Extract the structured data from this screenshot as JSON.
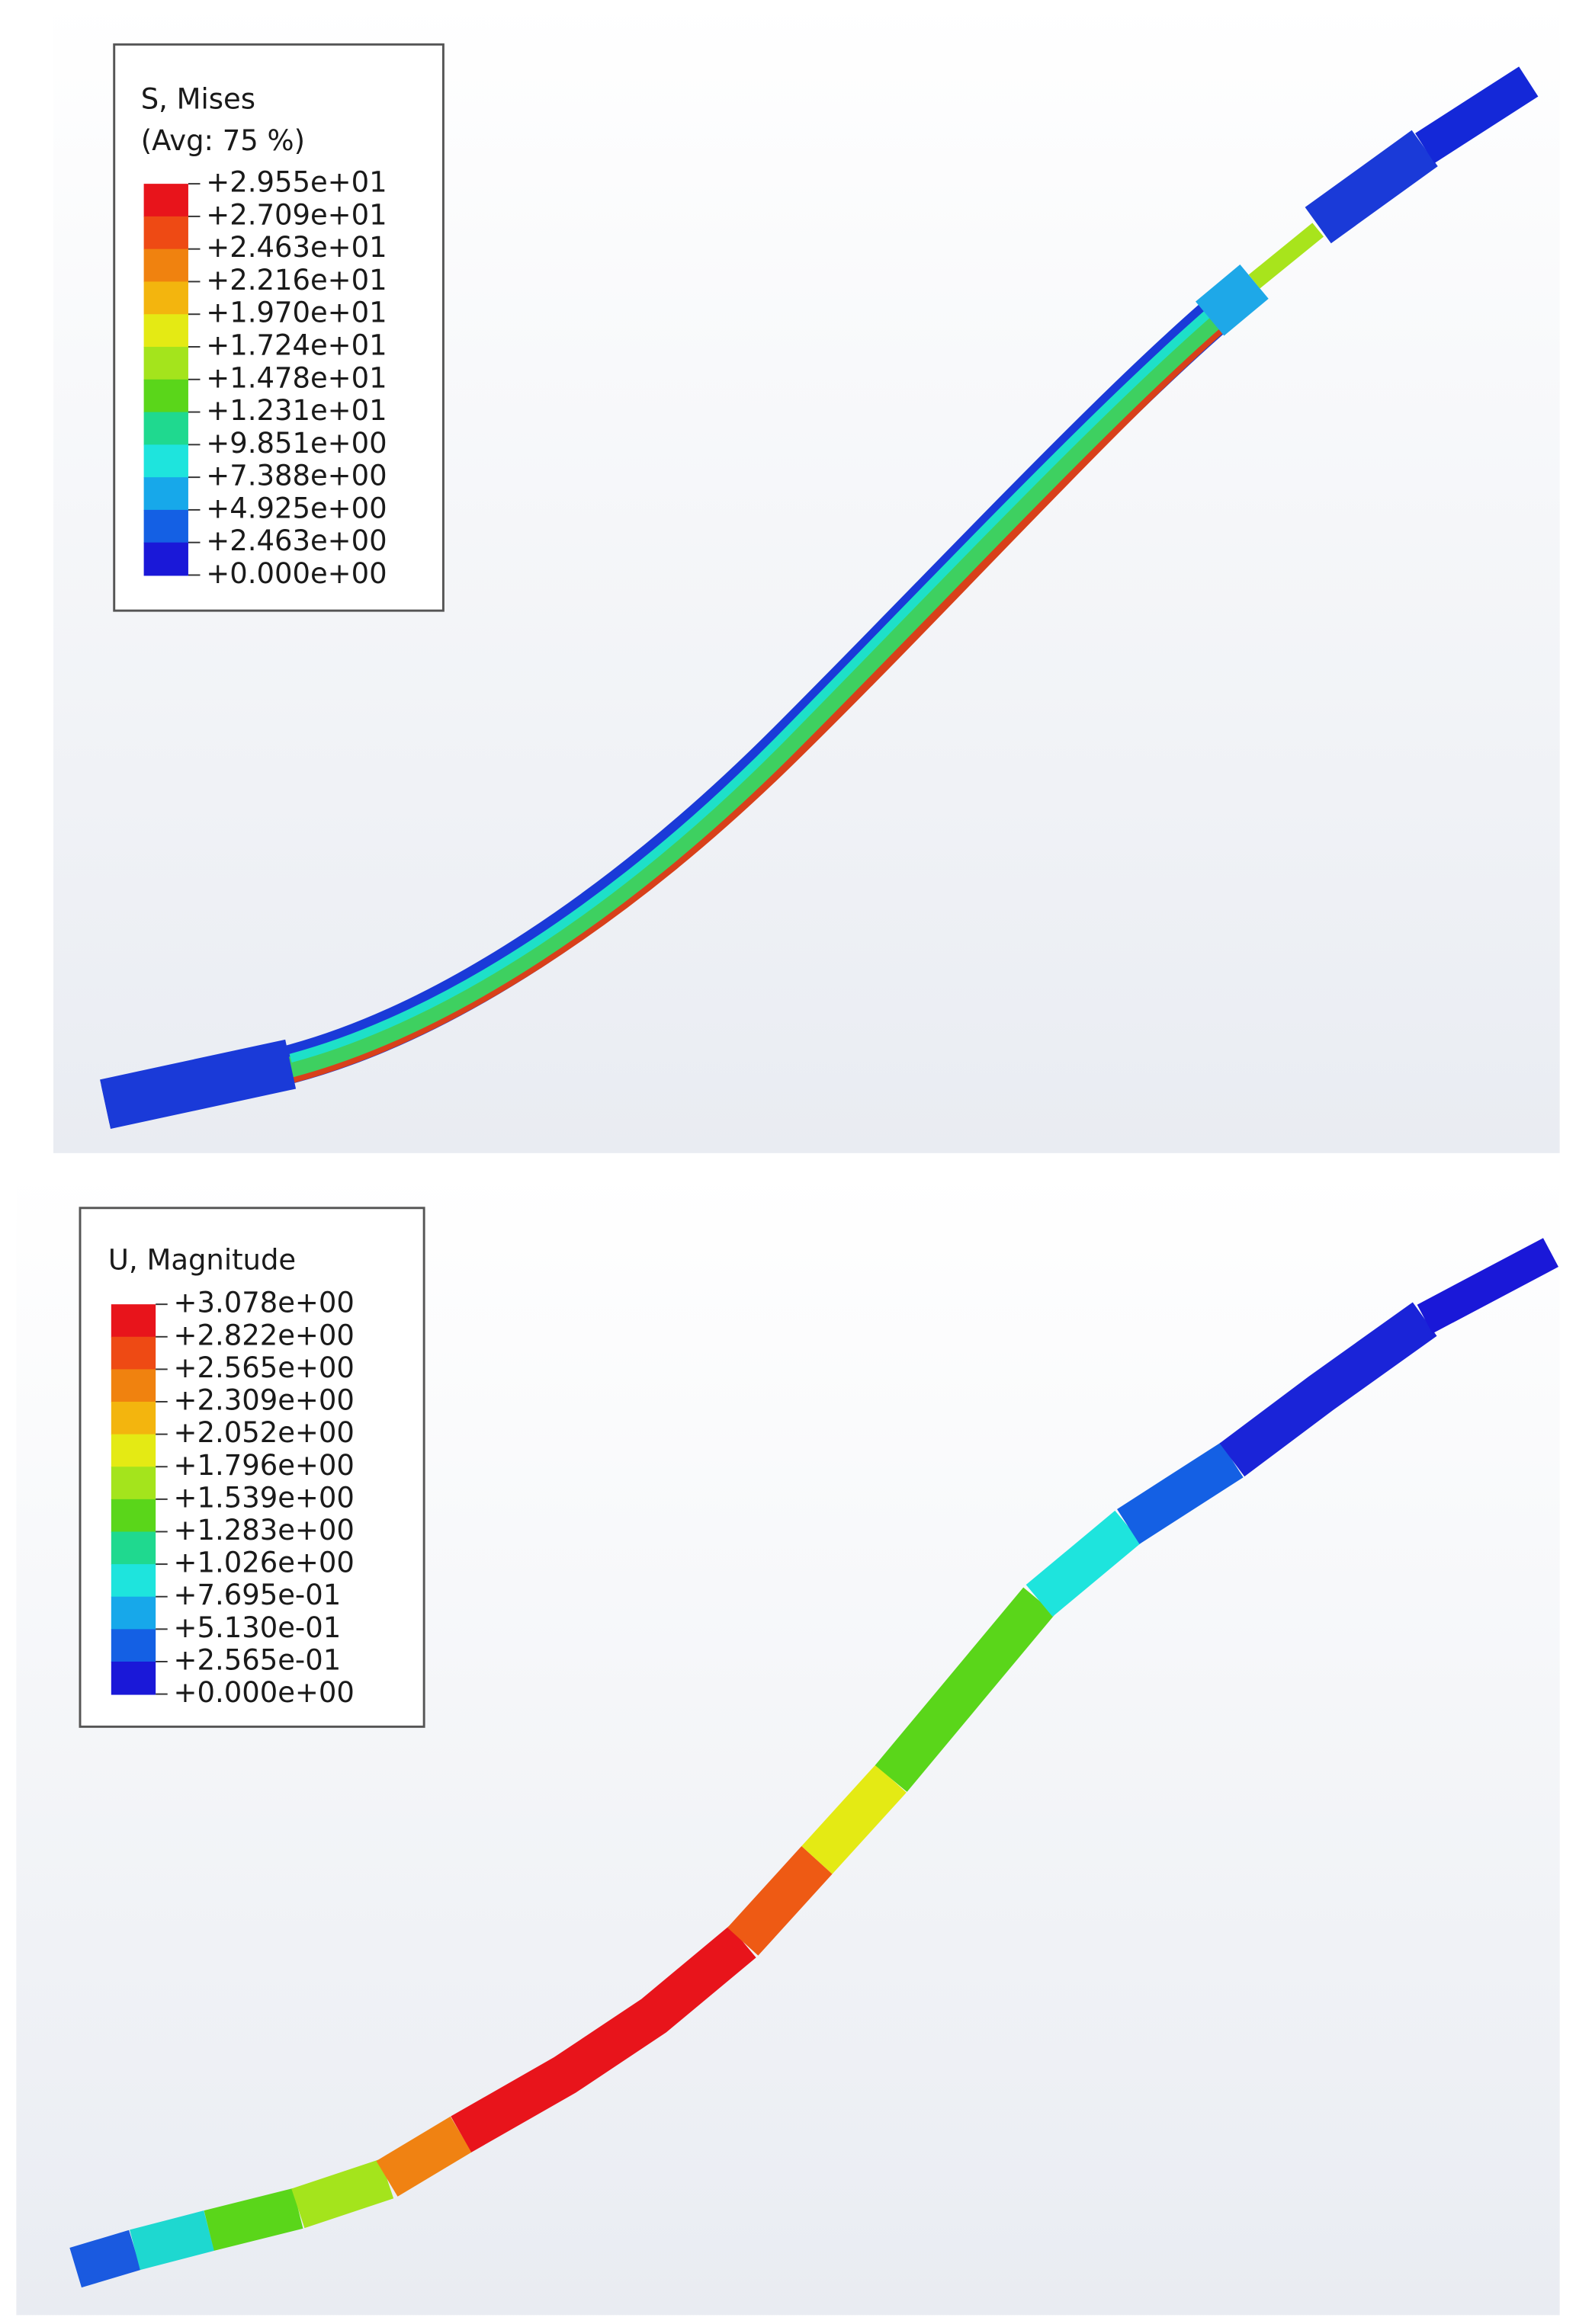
{
  "panels": [
    {
      "legend": {
        "title": [
          "S, Mises",
          "(Avg: 75 %)"
        ],
        "labels": [
          "+2.955e+01",
          "+2.709e+01",
          "+2.463e+01",
          "+2.216e+01",
          "+1.970e+01",
          "+1.724e+01",
          "+1.478e+01",
          "+1.231e+01",
          "+9.851e+00",
          "+7.388e+00",
          "+4.925e+00",
          "+2.463e+00",
          "+0.000e+00"
        ]
      }
    },
    {
      "legend": {
        "title": [
          "U, Magnitude"
        ],
        "labels": [
          "+3.078e+00",
          "+2.822e+00",
          "+2.565e+00",
          "+2.309e+00",
          "+2.052e+00",
          "+1.796e+00",
          "+1.539e+00",
          "+1.283e+00",
          "+1.026e+00",
          "+7.695e-01",
          "+5.130e-01",
          "+2.565e-01",
          "+0.000e+00"
        ]
      }
    }
  ]
}
